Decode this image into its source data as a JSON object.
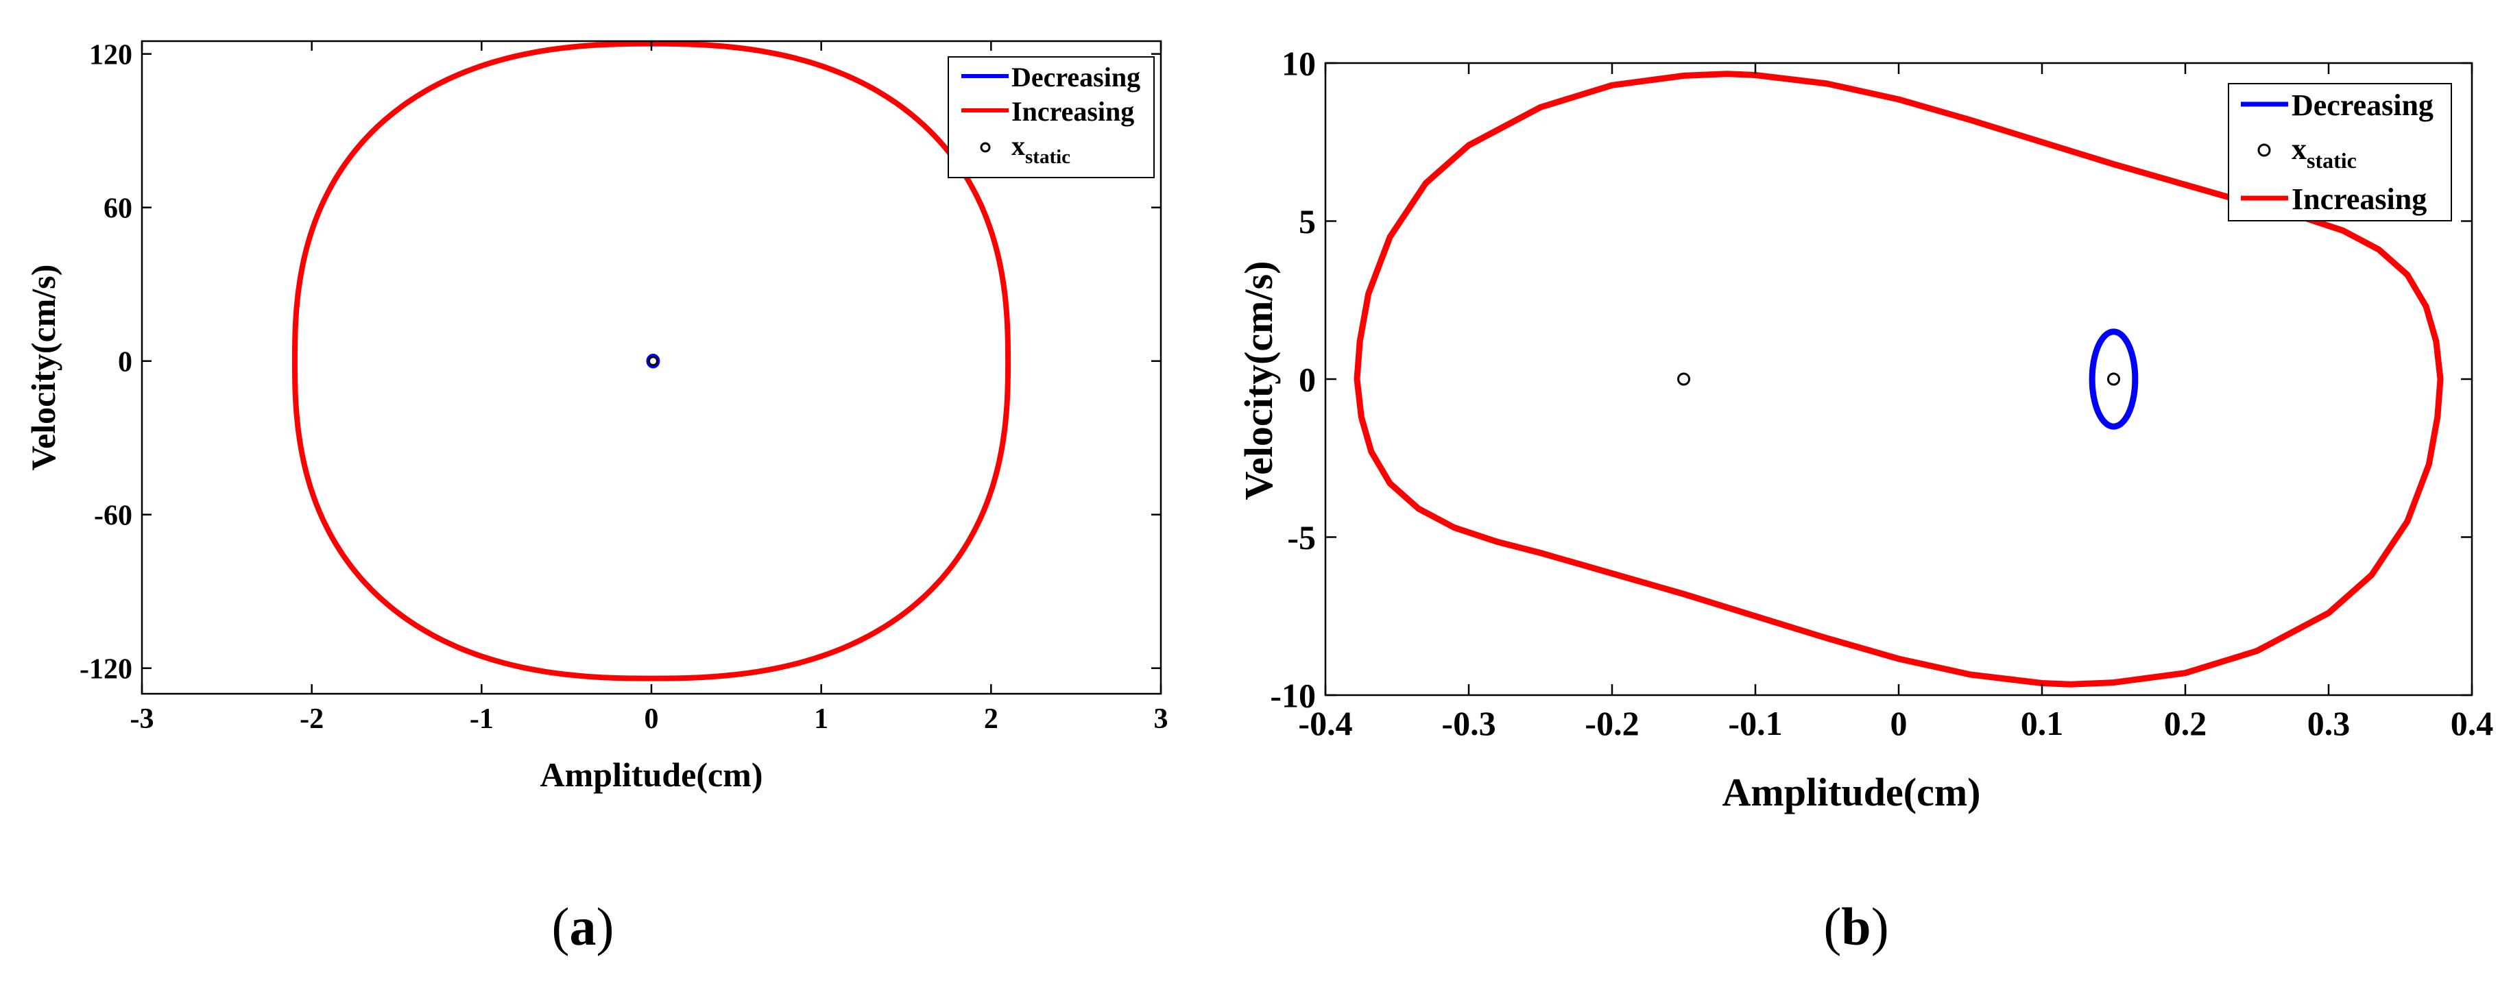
{
  "colors": {
    "decreasing": "#0000ff",
    "increasing": "#ff0000",
    "static_marker": "#000000"
  },
  "chart_data": [
    {
      "type": "line",
      "panel_label": {
        "open": "(",
        "letter": "a",
        "close": ")"
      },
      "xlabel": "Amplitude(cm)",
      "ylabel": "Velocity(cm/s)",
      "xlim": [
        -3,
        3
      ],
      "ylim": [
        -130,
        125
      ],
      "xticks": [
        -3,
        -2,
        -1,
        0,
        1,
        2,
        3
      ],
      "xtick_labels": [
        "-3",
        "-2",
        "-1",
        "0",
        "1",
        "2",
        "3"
      ],
      "yticks": [
        -120,
        -60,
        0,
        60,
        120
      ],
      "ytick_labels": [
        "-120",
        "-60",
        "0",
        "60",
        "120"
      ],
      "grid": false,
      "legend_position": "top-right",
      "legend": [
        {
          "key": "decreasing",
          "text": "Decreasing",
          "symbol": "line"
        },
        {
          "key": "increasing",
          "text": "Increasing",
          "symbol": "line"
        },
        {
          "key": "static",
          "text": "x",
          "subscript": "static",
          "symbol": "circle"
        }
      ],
      "series": [
        {
          "key": "increasing",
          "name": "Increasing",
          "shape": "superellipse",
          "center": [
            0,
            0
          ],
          "rx": 2.1,
          "ry": 124,
          "exponent": 2.45
        },
        {
          "key": "decreasing",
          "name": "Decreasing",
          "shape": "ellipse",
          "center": [
            0.01,
            0
          ],
          "rx": 0.03,
          "ry": 2.2
        }
      ],
      "static_points": [
        [
          0.01,
          0
        ]
      ]
    },
    {
      "type": "line",
      "panel_label": {
        "open": "(",
        "letter": "b",
        "close": ")"
      },
      "xlabel": "Amplitude(cm)",
      "ylabel": "Velocity(cm/s)",
      "xlim": [
        -0.4,
        0.4
      ],
      "ylim": [
        -10,
        10
      ],
      "xticks": [
        -0.4,
        -0.3,
        -0.2,
        -0.1,
        0,
        0.1,
        0.2,
        0.3,
        0.4
      ],
      "xtick_labels": [
        "-0.4",
        "-0.3",
        "-0.2",
        "-0.1",
        "0",
        "0.1",
        "0.2",
        "0.3",
        "0.4"
      ],
      "yticks": [
        -10,
        -5,
        0,
        5,
        10
      ],
      "ytick_labels": [
        "-10",
        "-5",
        "0",
        "5",
        "10"
      ],
      "grid": false,
      "legend_position": "top-right",
      "legend": [
        {
          "key": "decreasing",
          "text": "Decreasing",
          "symbol": "line"
        },
        {
          "key": "static",
          "text": "x",
          "subscript": "static",
          "symbol": "circle"
        },
        {
          "key": "increasing",
          "text": "Increasing",
          "symbol": "line"
        }
      ],
      "series": [
        {
          "key": "increasing",
          "name": "Increasing",
          "shape": "path",
          "closed": true,
          "points": [
            [
              -0.378,
              0
            ],
            [
              -0.375,
              -1.2
            ],
            [
              -0.368,
              -2.3
            ],
            [
              -0.355,
              -3.3
            ],
            [
              -0.335,
              -4.1
            ],
            [
              -0.31,
              -4.7
            ],
            [
              -0.28,
              -5.15
            ],
            [
              -0.25,
              -5.5
            ],
            [
              -0.2,
              -6.15
            ],
            [
              -0.15,
              -6.8
            ],
            [
              -0.1,
              -7.5
            ],
            [
              -0.05,
              -8.2
            ],
            [
              0,
              -8.85
            ],
            [
              0.05,
              -9.35
            ],
            [
              0.1,
              -9.62
            ],
            [
              0.12,
              -9.66
            ],
            [
              0.15,
              -9.6
            ],
            [
              0.2,
              -9.3
            ],
            [
              0.25,
              -8.6
            ],
            [
              0.3,
              -7.4
            ],
            [
              0.33,
              -6.2
            ],
            [
              0.355,
              -4.5
            ],
            [
              0.37,
              -2.7
            ],
            [
              0.376,
              -1.2
            ],
            [
              0.378,
              0
            ],
            [
              0.375,
              1.2
            ],
            [
              0.368,
              2.3
            ],
            [
              0.355,
              3.3
            ],
            [
              0.335,
              4.1
            ],
            [
              0.31,
              4.7
            ],
            [
              0.28,
              5.15
            ],
            [
              0.25,
              5.5
            ],
            [
              0.2,
              6.15
            ],
            [
              0.15,
              6.8
            ],
            [
              0.1,
              7.5
            ],
            [
              0.05,
              8.2
            ],
            [
              0,
              8.85
            ],
            [
              -0.05,
              9.35
            ],
            [
              -0.1,
              9.62
            ],
            [
              -0.12,
              9.66
            ],
            [
              -0.15,
              9.6
            ],
            [
              -0.2,
              9.3
            ],
            [
              -0.25,
              8.6
            ],
            [
              -0.3,
              7.4
            ],
            [
              -0.33,
              6.2
            ],
            [
              -0.355,
              4.5
            ],
            [
              -0.37,
              2.7
            ],
            [
              -0.376,
              1.2
            ]
          ]
        },
        {
          "key": "decreasing",
          "name": "Decreasing",
          "shape": "ellipse",
          "center": [
            0.15,
            0
          ],
          "rx": 0.015,
          "ry": 1.5
        }
      ],
      "static_points": [
        [
          -0.15,
          0
        ],
        [
          0.15,
          0
        ]
      ]
    }
  ]
}
